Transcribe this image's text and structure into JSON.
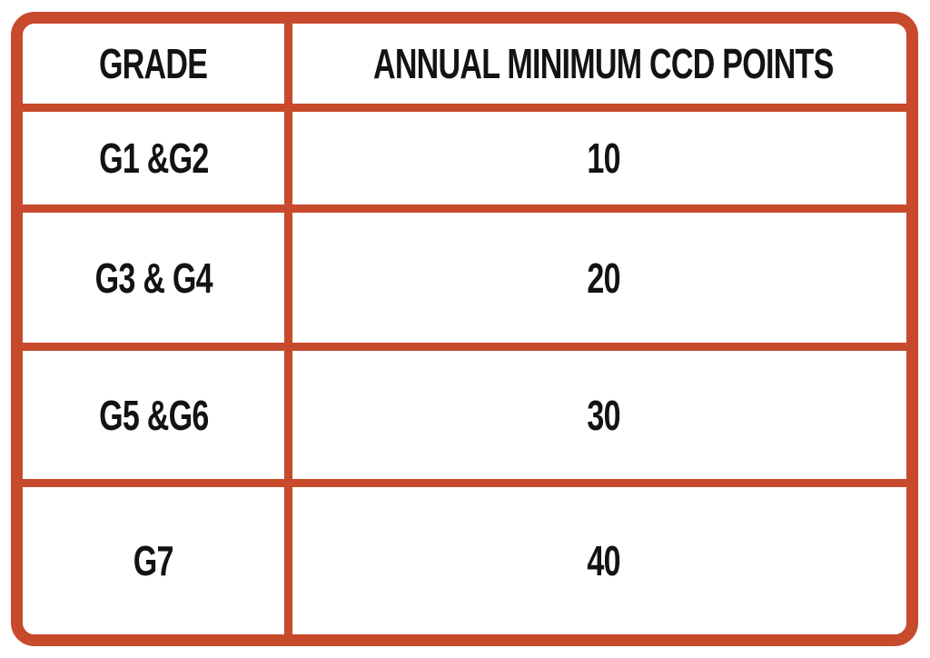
{
  "chart_data": {
    "type": "table",
    "title": "",
    "columns": [
      "GRADE",
      "ANNUAL MINIMUM CCD POINTS"
    ],
    "rows": [
      [
        "G1 &G2",
        "10"
      ],
      [
        "G3 & G4",
        "20"
      ],
      [
        "G5 &G6",
        "30"
      ],
      [
        "G7",
        "40"
      ]
    ]
  },
  "colors": {
    "accent": "#C74A2C",
    "text": "#131313",
    "background": "#FFFFFF"
  }
}
